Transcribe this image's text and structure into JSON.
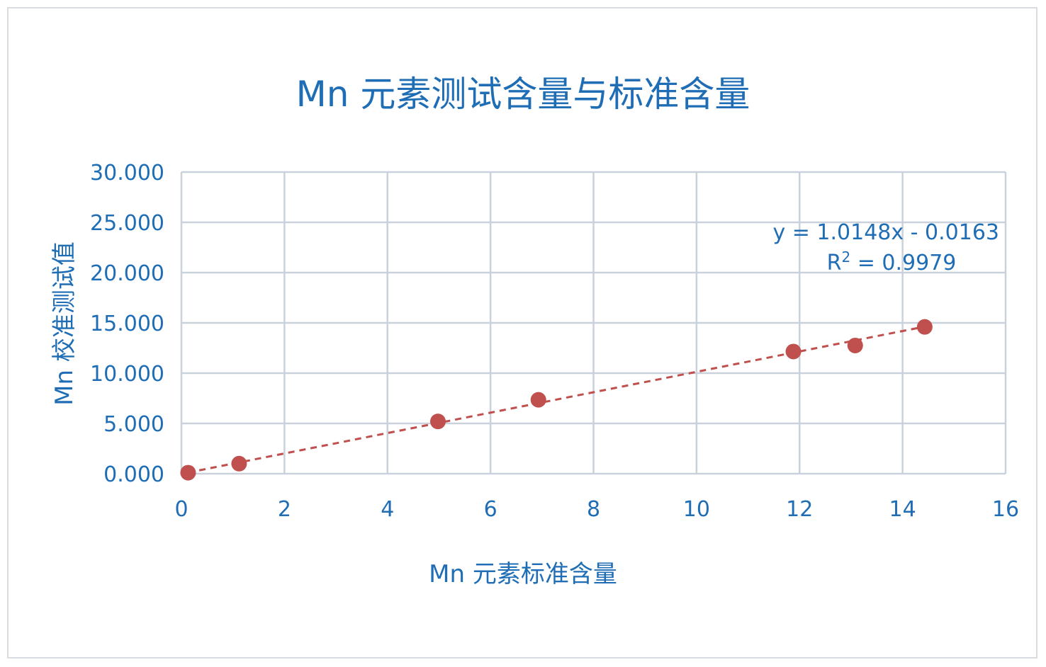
{
  "chart_data": {
    "type": "scatter",
    "title": "Mn 元素测试含量与标准含量",
    "xlabel": "Mn 元素标准含量",
    "ylabel": "Mn 校准测试值",
    "xlim": [
      0,
      16
    ],
    "ylim": [
      0,
      30
    ],
    "x_ticks": [
      "0",
      "2",
      "4",
      "6",
      "8",
      "10",
      "12",
      "14",
      "16"
    ],
    "y_ticks": [
      "0.000",
      "5.000",
      "10.000",
      "15.000",
      "20.000",
      "25.000",
      "30.000"
    ],
    "grid": true,
    "series": [
      {
        "points": [
          {
            "x": 0.13,
            "y": 0.1
          },
          {
            "x": 1.12,
            "y": 1.0
          },
          {
            "x": 4.98,
            "y": 5.2
          },
          {
            "x": 6.93,
            "y": 7.35
          },
          {
            "x": 11.88,
            "y": 12.15
          },
          {
            "x": 13.08,
            "y": 12.75
          },
          {
            "x": 14.43,
            "y": 14.6
          }
        ],
        "color": "#c0504d"
      }
    ],
    "trendline": {
      "type": "linear",
      "slope": 1.0148,
      "intercept": -0.0163,
      "x_range": [
        0.13,
        14.43
      ],
      "color": "#c0504d",
      "style": "dashed",
      "equation": "y = 1.0148x - 0.0163",
      "r2_label": "R",
      "r2_sup": "2",
      "r2_value": " = 0.9979"
    }
  }
}
